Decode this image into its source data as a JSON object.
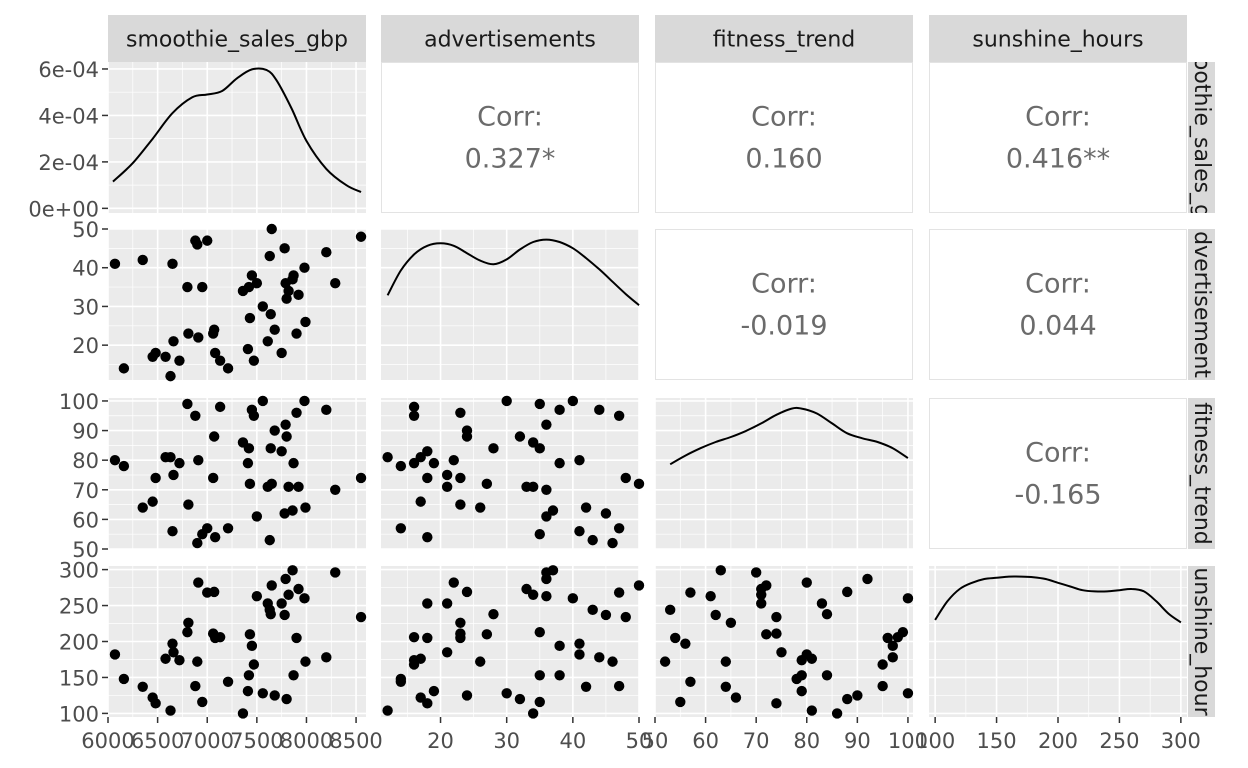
{
  "chart_data": {
    "type": "scatter",
    "subtype": "pairs-matrix",
    "title": "",
    "variables": [
      "smoothie_sales_gbp",
      "advertisements",
      "fitness_trend",
      "sunshine_hours"
    ],
    "strip_labels_right": [
      "oothie_sales_g",
      "dvertisement",
      "fitness_trend",
      "unshine_hour"
    ],
    "axes": {
      "smoothie_sales_gbp": {
        "range": [
          6000,
          8600
        ],
        "ticks": [
          6000,
          6500,
          7000,
          7500,
          8000,
          8500
        ],
        "tick_labels": [
          "6000",
          "6500",
          "7000",
          "7500",
          "8000",
          "8500"
        ]
      },
      "advertisements": {
        "range": [
          11,
          50
        ],
        "ticks": [
          20,
          30,
          40,
          50
        ],
        "tick_labels": [
          "20",
          "30",
          "40",
          "50"
        ]
      },
      "fitness_trend": {
        "range": [
          50,
          101
        ],
        "ticks": [
          50,
          60,
          70,
          80,
          90,
          100
        ],
        "tick_labels": [
          "50",
          "60",
          "70",
          "80",
          "90",
          "100"
        ]
      },
      "sunshine_hours": {
        "range": [
          95,
          305
        ],
        "ticks": [
          100,
          150,
          200,
          250,
          300
        ],
        "tick_labels": [
          "100",
          "150",
          "200",
          "250",
          "300"
        ]
      }
    },
    "density_axis": {
      "range": [
        -2e-05,
        0.00063
      ],
      "ticks": [
        0,
        0.0002,
        0.0004,
        0.0006
      ],
      "tick_labels": [
        "0e+00",
        "2e-04",
        "4e-04",
        "6e-04"
      ]
    },
    "correlations": [
      {
        "row": 0,
        "col": 1,
        "label": "Corr:",
        "value": "0.327*"
      },
      {
        "row": 0,
        "col": 2,
        "label": "Corr:",
        "value": "0.160"
      },
      {
        "row": 0,
        "col": 3,
        "label": "Corr:",
        "value": "0.416**"
      },
      {
        "row": 1,
        "col": 2,
        "label": "Corr:",
        "value": "-0.019"
      },
      {
        "row": 1,
        "col": 3,
        "label": "Corr:",
        "value": "0.044"
      },
      {
        "row": 2,
        "col": 3,
        "label": "Corr:",
        "value": "-0.165"
      }
    ],
    "densities": [
      {
        "variable": "smoothie_sales_gbp",
        "x": [
          6050,
          6250,
          6450,
          6650,
          6850,
          7000,
          7150,
          7300,
          7450,
          7600,
          7700,
          7850,
          8000,
          8200,
          8400,
          8550
        ],
        "y": [
          0.000115,
          0.000195,
          0.0003,
          0.00041,
          0.000478,
          0.00049,
          0.000505,
          0.00056,
          0.000598,
          0.000595,
          0.00055,
          0.00043,
          0.00029,
          0.00017,
          0.0001,
          7e-05
        ]
      },
      {
        "variable": "advertisements",
        "x": [
          12,
          14,
          16,
          18,
          20,
          22,
          24,
          26,
          28,
          30,
          32,
          34,
          36,
          38,
          40,
          42,
          44,
          46,
          48,
          50
        ],
        "y": [
          0.55,
          0.75,
          0.88,
          0.95,
          0.97,
          0.95,
          0.89,
          0.83,
          0.8,
          0.84,
          0.92,
          0.98,
          1.0,
          0.98,
          0.93,
          0.85,
          0.76,
          0.66,
          0.56,
          0.47
        ]
      },
      {
        "variable": "fitness_trend",
        "x": [
          53,
          56,
          59,
          62,
          65,
          68,
          71,
          74,
          77,
          79,
          82,
          85,
          88,
          91,
          94,
          97,
          100
        ],
        "y": [
          0.55,
          0.62,
          0.68,
          0.73,
          0.77,
          0.82,
          0.88,
          0.95,
          1.0,
          1.0,
          0.96,
          0.88,
          0.8,
          0.76,
          0.73,
          0.68,
          0.6
        ]
      },
      {
        "variable": "sunshine_hours",
        "x": [
          100,
          110,
          120,
          130,
          140,
          150,
          160,
          170,
          180,
          190,
          200,
          210,
          220,
          230,
          240,
          250,
          260,
          270,
          280,
          290,
          300
        ],
        "y": [
          0.65,
          0.8,
          0.9,
          0.95,
          0.98,
          0.99,
          1.0,
          1.0,
          0.995,
          0.98,
          0.95,
          0.92,
          0.89,
          0.88,
          0.88,
          0.89,
          0.9,
          0.88,
          0.8,
          0.7,
          0.63
        ]
      }
    ],
    "observations": [
      {
        "smoothie_sales_gbp": 6070,
        "advertisements": 41,
        "fitness_trend": 80,
        "sunshine_hours": 182
      },
      {
        "smoothie_sales_gbp": 6160,
        "advertisements": 14,
        "fitness_trend": 78,
        "sunshine_hours": 148
      },
      {
        "smoothie_sales_gbp": 6350,
        "advertisements": 42,
        "fitness_trend": 64,
        "sunshine_hours": 137
      },
      {
        "smoothie_sales_gbp": 6450,
        "advertisements": 17,
        "fitness_trend": 66,
        "sunshine_hours": 122
      },
      {
        "smoothie_sales_gbp": 6480,
        "advertisements": 18,
        "fitness_trend": 74,
        "sunshine_hours": 114
      },
      {
        "smoothie_sales_gbp": 6580,
        "advertisements": 17,
        "fitness_trend": 81,
        "sunshine_hours": 176
      },
      {
        "smoothie_sales_gbp": 6630,
        "advertisements": 12,
        "fitness_trend": 81,
        "sunshine_hours": 104
      },
      {
        "smoothie_sales_gbp": 6650,
        "advertisements": 41,
        "fitness_trend": 56,
        "sunshine_hours": 197
      },
      {
        "smoothie_sales_gbp": 6660,
        "advertisements": 21,
        "fitness_trend": 75,
        "sunshine_hours": 185
      },
      {
        "smoothie_sales_gbp": 6720,
        "advertisements": 16,
        "fitness_trend": 79,
        "sunshine_hours": 174
      },
      {
        "smoothie_sales_gbp": 6800,
        "advertisements": 35,
        "fitness_trend": 99,
        "sunshine_hours": 213
      },
      {
        "smoothie_sales_gbp": 6810,
        "advertisements": 23,
        "fitness_trend": 65,
        "sunshine_hours": 226
      },
      {
        "smoothie_sales_gbp": 6880,
        "advertisements": 47,
        "fitness_trend": 95,
        "sunshine_hours": 138
      },
      {
        "smoothie_sales_gbp": 6900,
        "advertisements": 46,
        "fitness_trend": 52,
        "sunshine_hours": 172
      },
      {
        "smoothie_sales_gbp": 6910,
        "advertisements": 22,
        "fitness_trend": 80,
        "sunshine_hours": 282
      },
      {
        "smoothie_sales_gbp": 6950,
        "advertisements": 35,
        "fitness_trend": 55,
        "sunshine_hours": 116
      },
      {
        "smoothie_sales_gbp": 7000,
        "advertisements": 47,
        "fitness_trend": 57,
        "sunshine_hours": 268
      },
      {
        "smoothie_sales_gbp": 7060,
        "advertisements": 23,
        "fitness_trend": 74,
        "sunshine_hours": 211
      },
      {
        "smoothie_sales_gbp": 7070,
        "advertisements": 24,
        "fitness_trend": 88,
        "sunshine_hours": 269
      },
      {
        "smoothie_sales_gbp": 7080,
        "advertisements": 18,
        "fitness_trend": 54,
        "sunshine_hours": 205
      },
      {
        "smoothie_sales_gbp": 7130,
        "advertisements": 16,
        "fitness_trend": 98,
        "sunshine_hours": 206
      },
      {
        "smoothie_sales_gbp": 7210,
        "advertisements": 14,
        "fitness_trend": 57,
        "sunshine_hours": 144
      },
      {
        "smoothie_sales_gbp": 7360,
        "advertisements": 34,
        "fitness_trend": 86,
        "sunshine_hours": 100
      },
      {
        "smoothie_sales_gbp": 7410,
        "advertisements": 19,
        "fitness_trend": 79,
        "sunshine_hours": 131
      },
      {
        "smoothie_sales_gbp": 7420,
        "advertisements": 35,
        "fitness_trend": 84,
        "sunshine_hours": 153
      },
      {
        "smoothie_sales_gbp": 7430,
        "advertisements": 27,
        "fitness_trend": 72,
        "sunshine_hours": 210
      },
      {
        "smoothie_sales_gbp": 7450,
        "advertisements": 38,
        "fitness_trend": 97,
        "sunshine_hours": 194
      },
      {
        "smoothie_sales_gbp": 7470,
        "advertisements": 16,
        "fitness_trend": 95,
        "sunshine_hours": 168
      },
      {
        "smoothie_sales_gbp": 7500,
        "advertisements": 36,
        "fitness_trend": 61,
        "sunshine_hours": 263
      },
      {
        "smoothie_sales_gbp": 7560,
        "advertisements": 30,
        "fitness_trend": 100,
        "sunshine_hours": 128
      },
      {
        "smoothie_sales_gbp": 7610,
        "advertisements": 21,
        "fitness_trend": 71,
        "sunshine_hours": 253
      },
      {
        "smoothie_sales_gbp": 7630,
        "advertisements": 43,
        "fitness_trend": 53,
        "sunshine_hours": 244
      },
      {
        "smoothie_sales_gbp": 7640,
        "advertisements": 28,
        "fitness_trend": 84,
        "sunshine_hours": 238
      },
      {
        "smoothie_sales_gbp": 7650,
        "advertisements": 50,
        "fitness_trend": 72,
        "sunshine_hours": 278
      },
      {
        "smoothie_sales_gbp": 7680,
        "advertisements": 24,
        "fitness_trend": 90,
        "sunshine_hours": 125
      },
      {
        "smoothie_sales_gbp": 7750,
        "advertisements": 18,
        "fitness_trend": 83,
        "sunshine_hours": 253
      },
      {
        "smoothie_sales_gbp": 7780,
        "advertisements": 45,
        "fitness_trend": 62,
        "sunshine_hours": 237
      },
      {
        "smoothie_sales_gbp": 7790,
        "advertisements": 36,
        "fitness_trend": 92,
        "sunshine_hours": 287
      },
      {
        "smoothie_sales_gbp": 7800,
        "advertisements": 32,
        "fitness_trend": 88,
        "sunshine_hours": 120
      },
      {
        "smoothie_sales_gbp": 7820,
        "advertisements": 34,
        "fitness_trend": 71,
        "sunshine_hours": 265
      },
      {
        "smoothie_sales_gbp": 7860,
        "advertisements": 37,
        "fitness_trend": 63,
        "sunshine_hours": 299
      },
      {
        "smoothie_sales_gbp": 7870,
        "advertisements": 38,
        "fitness_trend": 79,
        "sunshine_hours": 153
      },
      {
        "smoothie_sales_gbp": 7900,
        "advertisements": 23,
        "fitness_trend": 96,
        "sunshine_hours": 205
      },
      {
        "smoothie_sales_gbp": 7920,
        "advertisements": 33,
        "fitness_trend": 71,
        "sunshine_hours": 273
      },
      {
        "smoothie_sales_gbp": 7980,
        "advertisements": 40,
        "fitness_trend": 100,
        "sunshine_hours": 260
      },
      {
        "smoothie_sales_gbp": 7990,
        "advertisements": 26,
        "fitness_trend": 64,
        "sunshine_hours": 172
      },
      {
        "smoothie_sales_gbp": 8200,
        "advertisements": 44,
        "fitness_trend": 97,
        "sunshine_hours": 178
      },
      {
        "smoothie_sales_gbp": 8290,
        "advertisements": 36,
        "fitness_trend": 70,
        "sunshine_hours": 296
      },
      {
        "smoothie_sales_gbp": 8550,
        "advertisements": 48,
        "fitness_trend": 74,
        "sunshine_hours": 234
      }
    ]
  }
}
